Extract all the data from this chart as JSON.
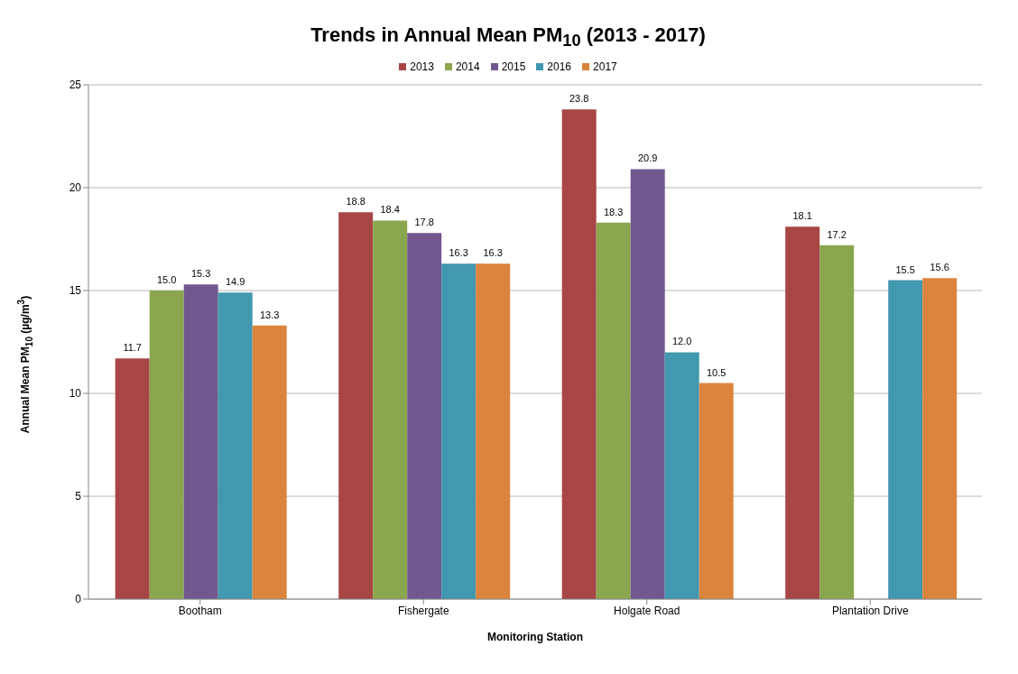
{
  "chart_data": {
    "type": "bar",
    "title": "Trends in Annual Mean PM$_{10}$ (2013 - 2017)",
    "xlabel": "Monitoring Station",
    "ylabel": "Annual Mean  PM$_{10}$ (µg/m$^{3}$)",
    "categories": [
      "Bootham",
      "Fishergate",
      "Holgate Road",
      "Plantation Drive"
    ],
    "series": [
      {
        "name": "2013",
        "color": "#a84545",
        "values": [
          11.7,
          18.8,
          23.8,
          18.1
        ],
        "value_labels": [
          "11.7",
          "18.8",
          "23.8",
          "18.1"
        ]
      },
      {
        "name": "2014",
        "color": "#8aa64e",
        "values": [
          15.0,
          18.4,
          18.3,
          17.2
        ],
        "value_labels": [
          "15.0",
          "18.4",
          "18.3",
          "17.2"
        ]
      },
      {
        "name": "2015",
        "color": "#71588f",
        "values": [
          15.3,
          17.8,
          20.9,
          null
        ],
        "value_labels": [
          "15.3",
          "17.8",
          "20.9",
          null
        ]
      },
      {
        "name": "2016",
        "color": "#4198af",
        "values": [
          14.9,
          16.3,
          12.0,
          15.5
        ],
        "value_labels": [
          "14.9",
          "16.3",
          "12.0",
          "15.5"
        ]
      },
      {
        "name": "2017",
        "color": "#db843d",
        "values": [
          13.3,
          16.3,
          10.5,
          15.6
        ],
        "value_labels": [
          "13.3",
          "16.3",
          "10.5",
          "15.6"
        ]
      }
    ],
    "ylim": [
      0,
      25
    ],
    "yticks": [
      0,
      5,
      10,
      15,
      20,
      25
    ],
    "grid": "y",
    "legend": "top"
  }
}
